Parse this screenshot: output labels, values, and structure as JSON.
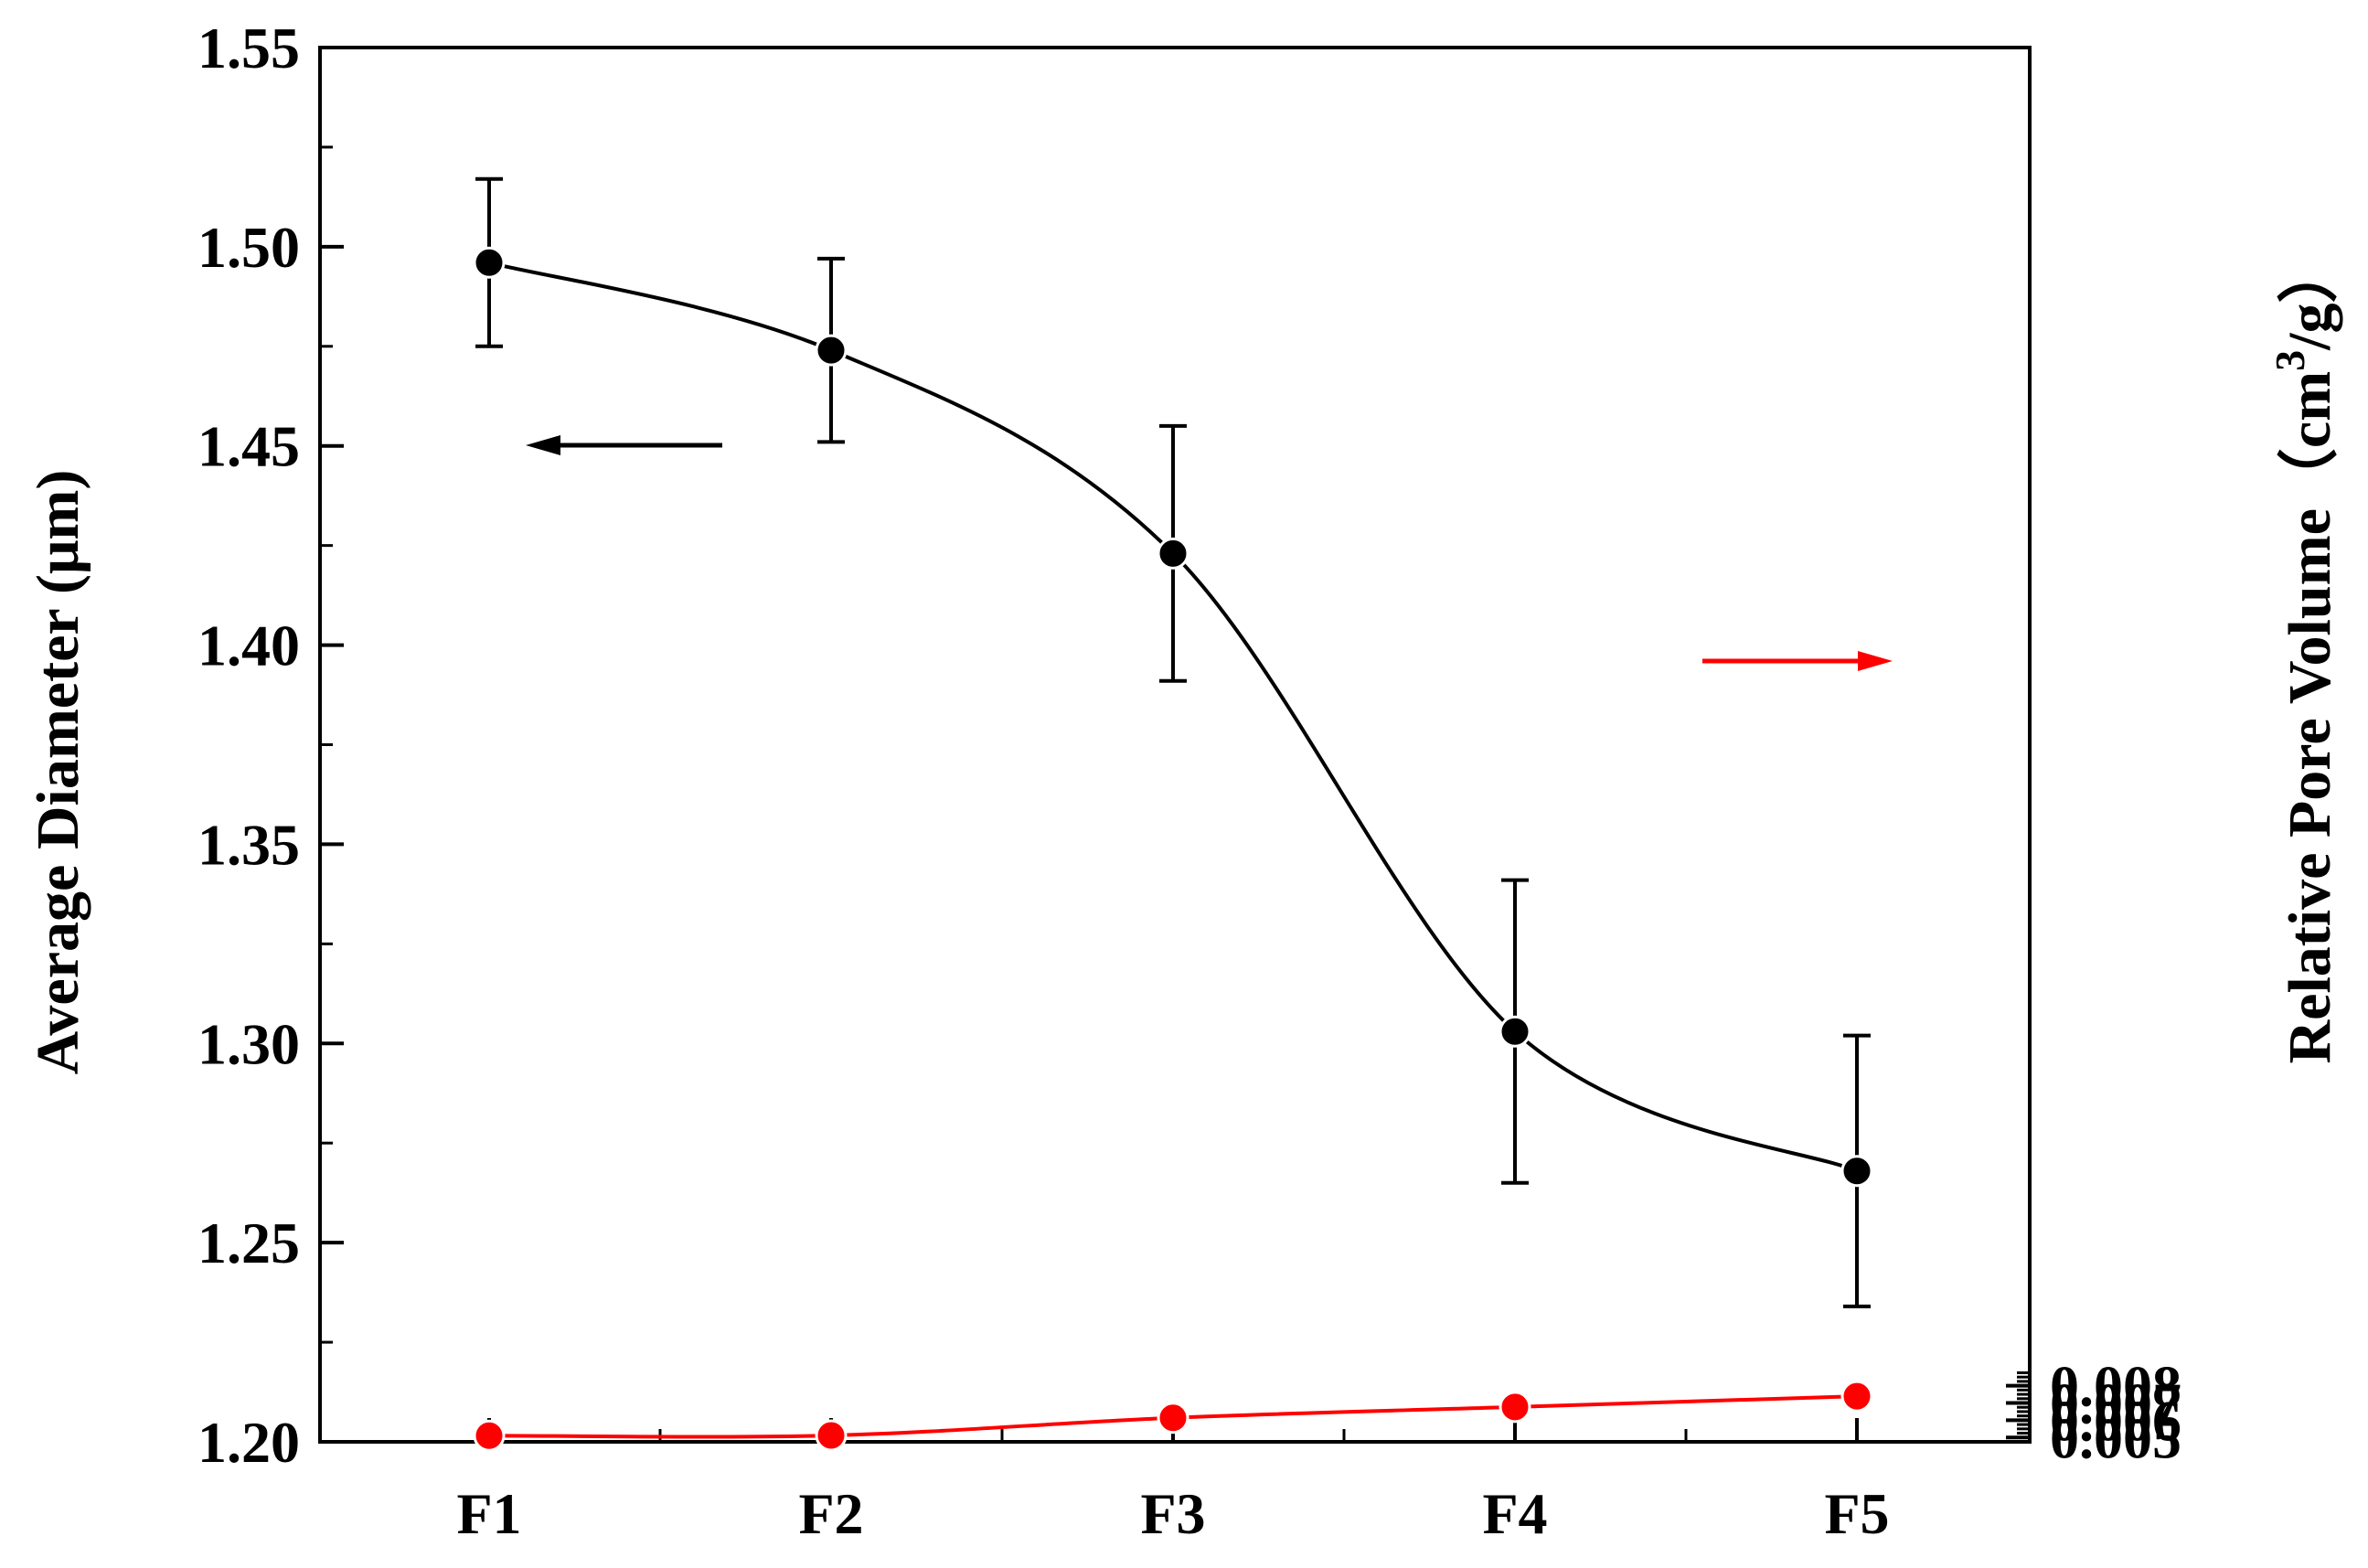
{
  "chart_data": {
    "type": "line",
    "categories": [
      "F1",
      "F2",
      "F3",
      "F4",
      "F5"
    ],
    "left_axis": {
      "label": "Average Diameter (μm)",
      "ylim": [
        1.2,
        1.55
      ],
      "ticks": [
        "1.20",
        "1.25",
        "1.30",
        "1.35",
        "1.40",
        "1.45",
        "1.50",
        "1.55"
      ]
    },
    "right_axis": {
      "label_main": "Relative Pore Volume（cm",
      "label_sup": "3",
      "label_tail": "/g）",
      "ylim": [
        0.00475,
        0.0855
      ],
      "ticks": [
        "0.005",
        "0.006",
        "0.007",
        "0.008"
      ]
    },
    "series": [
      {
        "axis": "left",
        "color": "#000000",
        "values": [
          1.496,
          1.474,
          1.423,
          1.303,
          1.268
        ],
        "error": [
          0.021,
          0.023,
          0.032,
          0.038,
          0.034
        ],
        "arrow": "left"
      },
      {
        "axis": "right",
        "color": "#ff0000",
        "values": [
          0.00511,
          0.00512,
          0.00614,
          0.00677,
          0.00739
        ],
        "arrow": "right"
      }
    ],
    "grid": false
  }
}
